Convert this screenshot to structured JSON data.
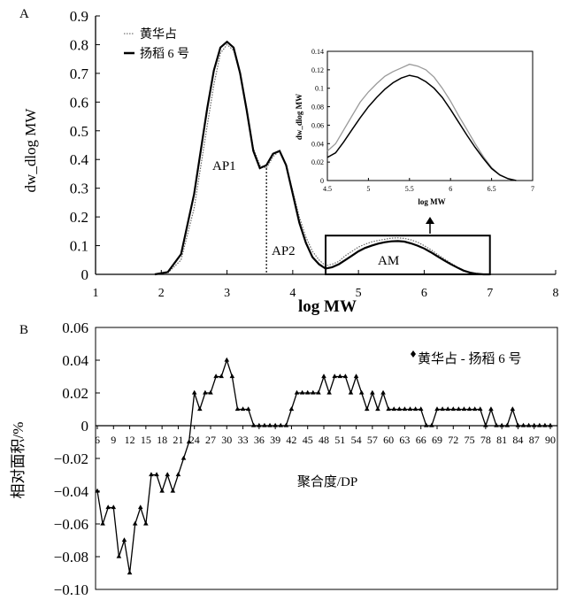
{
  "chart_data": [
    {
      "panel_label": "A",
      "type": "line",
      "xlabel": "log MW",
      "ylabel": "dw_dlog MW",
      "xlim": [
        1,
        8
      ],
      "ylim": [
        0,
        0.9
      ],
      "xticks": [
        "1",
        "2",
        "3",
        "4",
        "5",
        "6",
        "7",
        "8"
      ],
      "yticks": [
        "0",
        "0.1",
        "0.2",
        "0.3",
        "0.4",
        "0.5",
        "0.6",
        "0.7",
        "0.8",
        "0.9"
      ],
      "legend": {
        "placement": "top-left",
        "entries": [
          "黄华占",
          "扬稻 6 号"
        ]
      },
      "annotations": [
        "AP1",
        "AP2",
        "AM"
      ],
      "series": [
        {
          "name": "黄华占",
          "style": "dotted",
          "color": "#666666",
          "x": [
            1.9,
            2.1,
            2.3,
            2.5,
            2.7,
            2.8,
            2.9,
            3.0,
            3.1,
            3.2,
            3.3,
            3.4,
            3.5,
            3.6,
            3.7,
            3.8,
            3.9,
            4.0,
            4.1,
            4.2,
            4.3,
            4.4,
            4.5,
            4.6,
            4.7,
            4.8,
            4.9,
            5.0,
            5.1,
            5.2,
            5.3,
            5.4,
            5.5,
            5.6,
            5.7,
            5.8,
            5.9,
            6.0,
            6.1,
            6.2,
            6.3,
            6.4,
            6.5,
            6.6,
            6.7,
            6.8,
            6.9,
            7.0
          ],
          "y": [
            0,
            0.005,
            0.05,
            0.23,
            0.52,
            0.66,
            0.77,
            0.8,
            0.78,
            0.7,
            0.58,
            0.44,
            0.38,
            0.37,
            0.41,
            0.43,
            0.38,
            0.29,
            0.2,
            0.13,
            0.08,
            0.05,
            0.03,
            0.035,
            0.045,
            0.065,
            0.08,
            0.095,
            0.105,
            0.113,
            0.118,
            0.122,
            0.126,
            0.127,
            0.125,
            0.12,
            0.112,
            0.1,
            0.086,
            0.07,
            0.055,
            0.04,
            0.026,
            0.014,
            0.006,
            0.002,
            0,
            0
          ]
        },
        {
          "name": "扬稻 6 号",
          "style": "solid",
          "color": "#000000",
          "x": [
            1.9,
            2.1,
            2.3,
            2.5,
            2.7,
            2.8,
            2.9,
            3.0,
            3.1,
            3.2,
            3.3,
            3.4,
            3.5,
            3.6,
            3.7,
            3.8,
            3.9,
            4.0,
            4.1,
            4.2,
            4.3,
            4.4,
            4.5,
            4.6,
            4.7,
            4.8,
            4.9,
            5.0,
            5.1,
            5.2,
            5.3,
            5.4,
            5.5,
            5.6,
            5.7,
            5.8,
            5.9,
            6.0,
            6.1,
            6.2,
            6.3,
            6.4,
            6.5,
            6.6,
            6.7,
            6.8,
            6.9,
            7.0
          ],
          "y": [
            0,
            0.008,
            0.07,
            0.28,
            0.58,
            0.71,
            0.79,
            0.81,
            0.79,
            0.7,
            0.57,
            0.43,
            0.37,
            0.38,
            0.42,
            0.43,
            0.38,
            0.28,
            0.18,
            0.11,
            0.06,
            0.035,
            0.02,
            0.025,
            0.035,
            0.05,
            0.065,
            0.08,
            0.092,
            0.1,
            0.107,
            0.112,
            0.115,
            0.116,
            0.114,
            0.108,
            0.1,
            0.09,
            0.077,
            0.063,
            0.049,
            0.036,
            0.024,
            0.013,
            0.006,
            0.002,
            0,
            0
          ]
        }
      ],
      "divider_x": 3.6,
      "highlight_box": {
        "x": [
          4.5,
          7.0
        ],
        "y": [
          0,
          0.135
        ]
      }
    },
    {
      "panel_label": "",
      "type": "line",
      "title": "",
      "xlabel": "log MW",
      "ylabel": "dw_dlog MW",
      "xlim": [
        4.5,
        7
      ],
      "ylim": [
        0,
        0.14
      ],
      "xticks": [
        "4.5",
        "5",
        "5.5",
        "6",
        "6.5",
        "7"
      ],
      "yticks": [
        "0",
        "0.02",
        "0.04",
        "0.06",
        "0.08",
        "0.1",
        "0.12",
        "0.14"
      ],
      "series": [
        {
          "name": "黄华占",
          "color": "#9a9a9a",
          "x": [
            4.5,
            4.6,
            4.7,
            4.8,
            4.9,
            5.0,
            5.1,
            5.2,
            5.3,
            5.4,
            5.5,
            5.6,
            5.7,
            5.8,
            5.9,
            6.0,
            6.1,
            6.2,
            6.3,
            6.4,
            6.5,
            6.6,
            6.7,
            6.8
          ],
          "y": [
            0.032,
            0.04,
            0.055,
            0.07,
            0.085,
            0.096,
            0.105,
            0.113,
            0.118,
            0.122,
            0.126,
            0.124,
            0.12,
            0.112,
            0.1,
            0.086,
            0.07,
            0.055,
            0.04,
            0.026,
            0.014,
            0.006,
            0.002,
            0
          ]
        },
        {
          "name": "扬稻 6 号",
          "color": "#000000",
          "x": [
            4.5,
            4.6,
            4.7,
            4.8,
            4.9,
            5.0,
            5.1,
            5.2,
            5.3,
            5.4,
            5.5,
            5.6,
            5.7,
            5.8,
            5.9,
            6.0,
            6.1,
            6.2,
            6.3,
            6.4,
            6.5,
            6.6,
            6.7,
            6.8
          ],
          "y": [
            0.025,
            0.03,
            0.042,
            0.055,
            0.068,
            0.08,
            0.09,
            0.099,
            0.106,
            0.111,
            0.114,
            0.112,
            0.107,
            0.1,
            0.09,
            0.077,
            0.063,
            0.049,
            0.036,
            0.024,
            0.013,
            0.006,
            0.002,
            0
          ]
        }
      ]
    },
    {
      "panel_label": "B",
      "type": "line",
      "xlabel": "聚合度/DP",
      "ylabel": "相对面积/%",
      "ylim": [
        -0.1,
        0.06
      ],
      "yticks": [
        "0.06",
        "0.04",
        "0.02",
        "0",
        "−0.02",
        "−0.04",
        "−0.06",
        "−0.08",
        "−0.10"
      ],
      "xticks": [
        "6",
        "9",
        "12",
        "15",
        "18",
        "21",
        "24",
        "27",
        "30",
        "33",
        "36",
        "39",
        "42",
        "45",
        "48",
        "51",
        "54",
        "57",
        "60",
        "63",
        "66",
        "69",
        "72",
        "75",
        "78",
        "81",
        "84",
        "87",
        "90"
      ],
      "legend": {
        "placement": "top-right",
        "entries": [
          "黄华占 - 扬稻 6 号"
        ]
      },
      "x_start": 6,
      "x_end": 90,
      "values": [
        -0.04,
        -0.06,
        -0.05,
        -0.05,
        -0.08,
        -0.07,
        -0.09,
        -0.06,
        -0.05,
        -0.06,
        -0.03,
        -0.03,
        -0.04,
        -0.03,
        -0.04,
        -0.03,
        -0.02,
        -0.01,
        0.02,
        0.01,
        0.02,
        0.02,
        0.03,
        0.03,
        0.04,
        0.03,
        0.01,
        0.01,
        0.01,
        0,
        0,
        0,
        0,
        0,
        0,
        0,
        0.01,
        0.02,
        0.02,
        0.02,
        0.02,
        0.02,
        0.03,
        0.02,
        0.03,
        0.03,
        0.03,
        0.02,
        0.03,
        0.02,
        0.01,
        0.02,
        0.01,
        0.02,
        0.01,
        0.01,
        0.01,
        0.01,
        0.01,
        0.01,
        0.01,
        0,
        0,
        0.01,
        0.01,
        0.01,
        0.01,
        0.01,
        0.01,
        0.01,
        0.01,
        0.01,
        0,
        0.01,
        0,
        0,
        0,
        0.01,
        0,
        0,
        0,
        0,
        0,
        0,
        0
      ]
    }
  ]
}
